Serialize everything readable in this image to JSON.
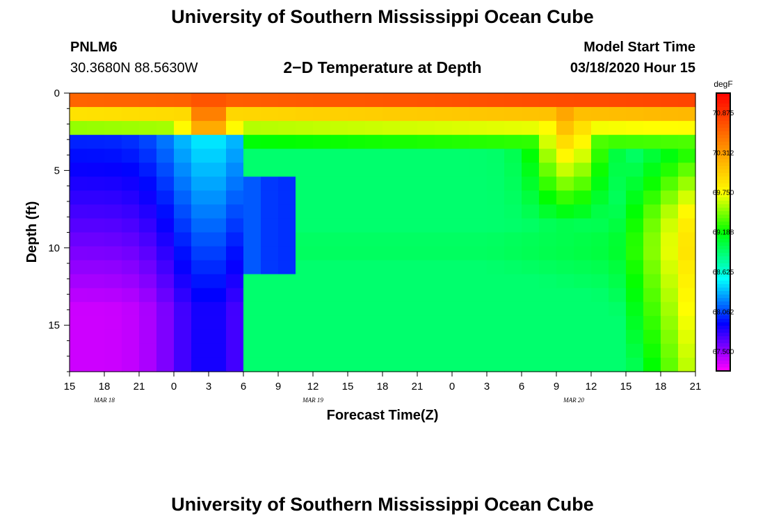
{
  "header": {
    "title_top": "University of Southern Mississippi Ocean Cube",
    "station_id": "PNLM6",
    "station_coords": "30.3680N 88.5630W",
    "plot_title": "2−D Temperature at Depth",
    "model_start_label": "Model Start Time",
    "model_start_value": "03/18/2020 Hour 15",
    "title_bottom": "University of Southern Mississippi Ocean Cube"
  },
  "chart_data": {
    "type": "heatmap",
    "title": "2−D Temperature at Depth",
    "xlabel": "Forecast Time(Z)",
    "ylabel": "Depth (ft)",
    "x_tick_labels": [
      "15",
      "18",
      "21",
      "0",
      "3",
      "6",
      "9",
      "12",
      "15",
      "18",
      "21",
      "0",
      "3",
      "6",
      "9",
      "12",
      "15",
      "18",
      "21"
    ],
    "x_range_hours": [
      0,
      54
    ],
    "date_labels": [
      {
        "text": "MAR 18",
        "hour": 3
      },
      {
        "text": "MAR 19",
        "hour": 21
      },
      {
        "text": "MAR 20",
        "hour": 43.5
      }
    ],
    "y_ticks": [
      0,
      5,
      10,
      15
    ],
    "ylim": [
      0,
      18
    ],
    "colorbar": {
      "unit": "degF",
      "min": 67.22,
      "max": 71.15,
      "tick_labels": [
        "70.875",
        "70.312",
        "69.750",
        "69.188",
        "68.625",
        "68.062",
        "67.500"
      ],
      "tick_values": [
        70.875,
        70.312,
        69.75,
        69.188,
        68.625,
        68.062,
        67.5
      ]
    },
    "field_description": "temperature (degF) by depth (rows) and forecast hour (columns)"
  }
}
